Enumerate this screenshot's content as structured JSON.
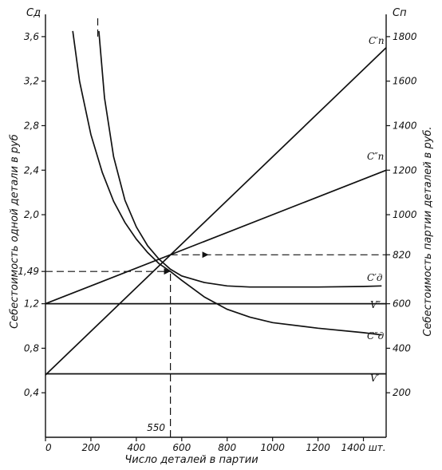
{
  "chart_data": {
    "type": "line",
    "title": "",
    "xlabel": "Число деталей в партии",
    "ylabel_left": "Себестоимость одной детали в руб",
    "ylabel_right": "Себестоимость партии деталей в руб.",
    "left_axis_symbol": "Cд",
    "right_axis_symbol": "Cп",
    "xlim": [
      0,
      1500
    ],
    "ylim_left": [
      0,
      3.8
    ],
    "ylim_right": [
      0,
      1900
    ],
    "x_ticks": [
      "0",
      "200",
      "400",
      "600",
      "800",
      "1000",
      "1200",
      "1400 шт."
    ],
    "x_tick_values": [
      0,
      200,
      400,
      600,
      800,
      1000,
      1200,
      1400
    ],
    "left_ticks": [
      "0,4",
      "0,8",
      "1,2",
      "1,49",
      "2,0",
      "2,4",
      "2,8",
      "3,2",
      "3,6"
    ],
    "left_tick_values": [
      0.4,
      0.8,
      1.2,
      1.49,
      2.0,
      2.4,
      2.8,
      3.2,
      3.6
    ],
    "right_ticks": [
      "200",
      "400",
      "600",
      "820",
      "1000",
      "1200",
      "1400",
      "1600",
      "1800"
    ],
    "right_tick_values": [
      200,
      400,
      600,
      820,
      1000,
      1200,
      1400,
      1600,
      1800
    ],
    "annotation_x": "550",
    "annotation_x_value": 550,
    "grid": false,
    "series": [
      {
        "name": "C′п",
        "axis": "right",
        "style": "solid",
        "x": [
          0,
          1500
        ],
        "y": [
          280,
          1750
        ]
      },
      {
        "name": "C″п",
        "axis": "right",
        "style": "solid",
        "x": [
          0,
          1500
        ],
        "y": [
          600,
          1200
        ]
      },
      {
        "name": "C′д",
        "axis": "left",
        "style": "solid",
        "x": [
          235,
          260,
          300,
          350,
          400,
          450,
          500,
          550,
          600,
          700,
          800,
          900,
          1000,
          1200,
          1400,
          1480
        ],
        "y": [
          3.65,
          3.05,
          2.52,
          2.13,
          1.89,
          1.72,
          1.6,
          1.51,
          1.45,
          1.39,
          1.36,
          1.35,
          1.35,
          1.35,
          1.355,
          1.36
        ]
      },
      {
        "name": "C″д",
        "axis": "left",
        "style": "solid",
        "x": [
          120,
          150,
          200,
          250,
          300,
          350,
          400,
          450,
          500,
          550,
          600,
          700,
          800,
          900,
          1000,
          1200,
          1400,
          1480
        ],
        "y": [
          3.65,
          3.2,
          2.72,
          2.38,
          2.12,
          1.93,
          1.78,
          1.66,
          1.56,
          1.49,
          1.41,
          1.26,
          1.15,
          1.08,
          1.03,
          0.98,
          0.94,
          0.92
        ]
      },
      {
        "name": "V″",
        "axis": "left",
        "style": "solid",
        "x": [
          0,
          1500
        ],
        "y": [
          1.2,
          1.2
        ]
      },
      {
        "name": "V′",
        "axis": "left",
        "style": "solid",
        "x": [
          0,
          1500
        ],
        "y": [
          0.57,
          0.57
        ]
      }
    ],
    "dashed_guides": [
      {
        "axis": "left",
        "x": [
          550,
          550
        ],
        "y": [
          0,
          1.49
        ]
      },
      {
        "axis": "left",
        "x": [
          0,
          550
        ],
        "y": [
          1.49,
          1.49
        ]
      },
      {
        "axis": "right",
        "x": [
          550,
          1500
        ],
        "y": [
          820,
          820
        ]
      },
      {
        "axis": "left",
        "x": [
          230,
          230
        ],
        "y": [
          3.6,
          3.8
        ]
      }
    ]
  }
}
